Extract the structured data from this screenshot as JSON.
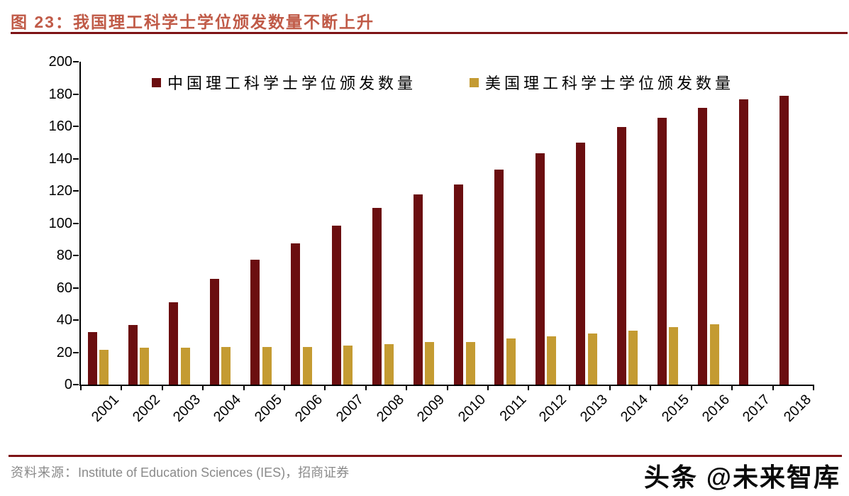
{
  "title": {
    "label": "图 23：我国理工科学士学位颁发数量不断上升"
  },
  "source": {
    "prefix": "资料来源：",
    "text": "Institute of Education Sciences (IES)，招商证券"
  },
  "watermark": "头条 @未来智库",
  "colors": {
    "title_text": "#c05a47",
    "rule_red": "#7e1316",
    "china_bar": "#6b0e10",
    "us_bar": "#c49b32",
    "axis": "#000000",
    "source_text": "#8a8a8a"
  },
  "chart_data": {
    "type": "bar",
    "title": "图 23：我国理工科学士学位颁发数量不断上升",
    "xlabel": "",
    "ylabel": "",
    "ylim": [
      0,
      200
    ],
    "ytick_step": 20,
    "grid": false,
    "legend_position": "top-center",
    "categories": [
      "2001",
      "2002",
      "2003",
      "2004",
      "2005",
      "2006",
      "2007",
      "2008",
      "2009",
      "2010",
      "2011",
      "2012",
      "2013",
      "2014",
      "2015",
      "2016",
      "2017",
      "2018"
    ],
    "series": [
      {
        "name": "中国理工科学士学位颁发数量",
        "color": "#6b0e10",
        "values": [
          32.5,
          37,
          51,
          65.5,
          77.5,
          87.5,
          98.5,
          109.5,
          118,
          124,
          133,
          143.5,
          150,
          159.5,
          165.5,
          171.5,
          176.5,
          179
        ]
      },
      {
        "name": "美国理工科学士学位颁发数量",
        "color": "#c49b32",
        "values": [
          21.5,
          23,
          23,
          23.5,
          23.5,
          23.5,
          24,
          25,
          26.5,
          26.5,
          28.5,
          30,
          31.5,
          33.5,
          35.5,
          37.5,
          null,
          null
        ]
      }
    ]
  }
}
